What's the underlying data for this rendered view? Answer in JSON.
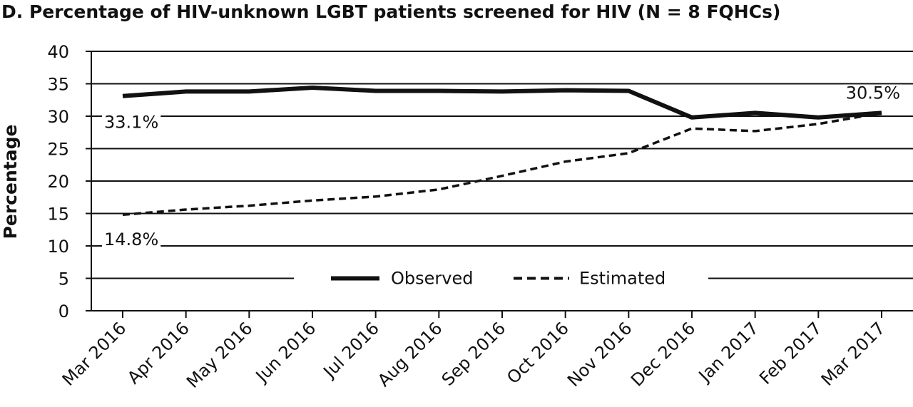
{
  "chart_data": {
    "type": "line",
    "title": "D. Percentage of HIV-unknown LGBT patients screened for HIV (N = 8 FQHCs)",
    "ylabel": "Percentage",
    "xlabel": "",
    "ylim": [
      0,
      40
    ],
    "yticks": [
      "0",
      "5",
      "10",
      "15",
      "20",
      "25",
      "30",
      "35",
      "40"
    ],
    "grid": "horizontal",
    "legend_position": "bottom",
    "categories": [
      "Mar 2016",
      "Apr 2016",
      "May 2016",
      "Jun 2016",
      "Jul 2016",
      "Aug 2016",
      "Sep 2016",
      "Oct 2016",
      "Nov 2016",
      "Dec 2016",
      "Jan 2017",
      "Feb 2017",
      "Mar 2017"
    ],
    "series": [
      {
        "name": "Observed",
        "style": "solid",
        "color": "#111111",
        "values": [
          33.1,
          33.8,
          33.8,
          34.4,
          33.9,
          33.9,
          33.8,
          34.0,
          33.9,
          29.8,
          30.5,
          29.8,
          30.5
        ]
      },
      {
        "name": "Estimated",
        "style": "dashed",
        "color": "#111111",
        "values": [
          14.8,
          15.6,
          16.2,
          17.0,
          17.6,
          18.7,
          20.8,
          23.0,
          24.3,
          28.1,
          27.7,
          28.8,
          30.5
        ]
      }
    ],
    "annotations": [
      "33.1%",
      "14.8%",
      "30.5%"
    ]
  }
}
